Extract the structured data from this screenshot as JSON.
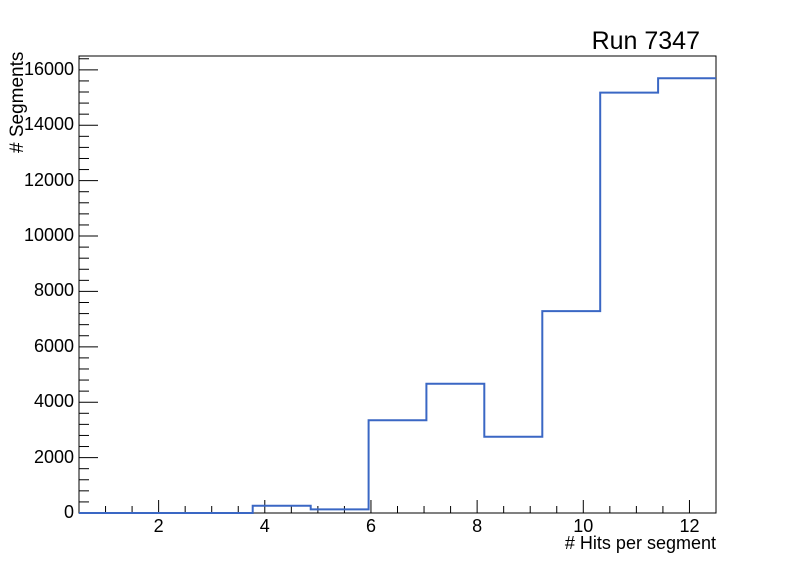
{
  "title": "Run 7347",
  "colors": {
    "background": "#ffffff",
    "axis": "#000000",
    "text": "#000000",
    "histogram_line": "#3a67c4"
  },
  "chart_data": {
    "type": "histogram",
    "style": "step-outline (ROOT TH1 'HIST' draw style)",
    "title": "Run 7347",
    "xlabel": "# Hits per segment",
    "ylabel": "# Segments",
    "xlim": [
      0.5,
      12.5
    ],
    "ylim": [
      0,
      16500
    ],
    "grid": false,
    "legend": false,
    "n_bins": 11,
    "bin_edges": [
      0.5,
      1.591,
      2.682,
      3.773,
      4.864,
      5.955,
      7.045,
      8.136,
      9.227,
      10.318,
      11.409,
      12.5
    ],
    "counts": [
      0,
      0,
      0,
      260,
      130,
      3350,
      4670,
      2750,
      7290,
      15180,
      15700
    ],
    "x_major_ticks": [
      2,
      4,
      6,
      8,
      10,
      12
    ],
    "x_minor_step": 0.5,
    "y_major_ticks": [
      0,
      2000,
      4000,
      6000,
      8000,
      10000,
      12000,
      14000,
      16000
    ],
    "y_minor_step": 400,
    "line_color": "#3a67c4",
    "line_width": 2
  }
}
